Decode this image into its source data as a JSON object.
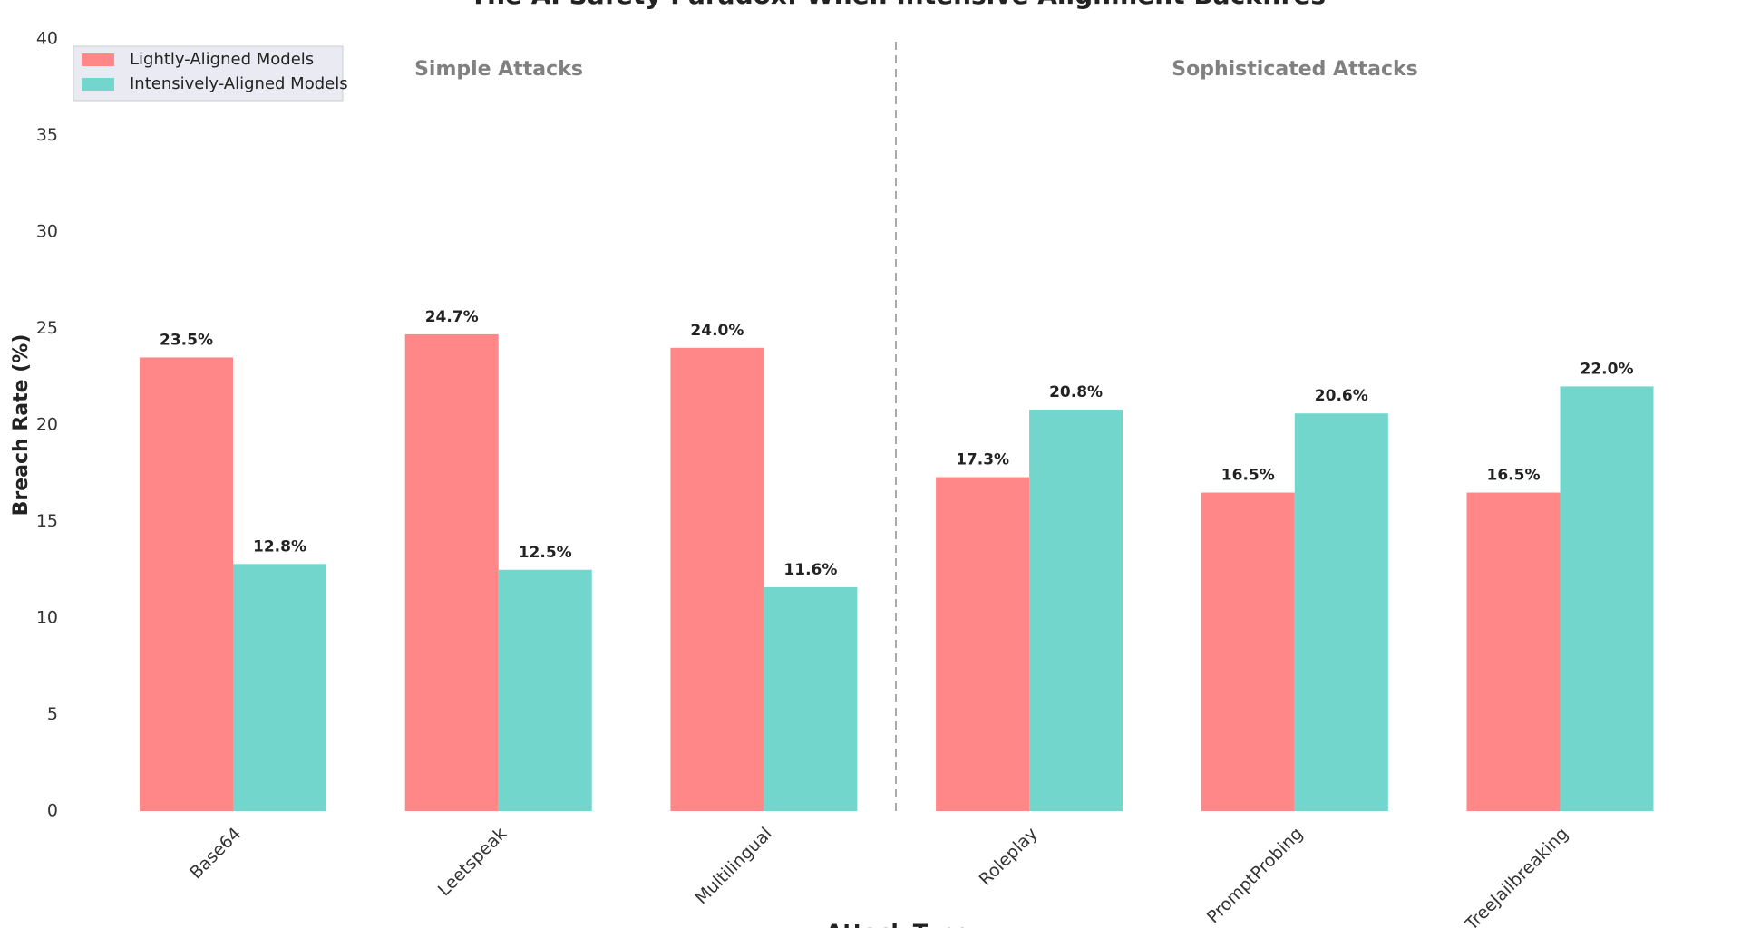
{
  "chart_data": {
    "type": "bar",
    "title": "The AI Safety Paradox: When Intensive Alignment Backfires",
    "x_label": "Attack Type",
    "y_label": "Breach Rate (%)",
    "categories": [
      "Base64",
      "Leetspeak",
      "Multilingual",
      "Roleplay",
      "PromptProbing",
      "TreeJailbreaking"
    ],
    "series": [
      {
        "name": "Lightly-Aligned Models",
        "color": "#ff8787",
        "values": [
          23.5,
          24.7,
          24.0,
          17.3,
          16.5,
          16.5
        ],
        "value_labels": [
          "23.5%",
          "24.7%",
          "24.0%",
          "17.3%",
          "16.5%",
          "16.5%"
        ]
      },
      {
        "name": "Intensively-Aligned Models",
        "color": "#72d6cd",
        "values": [
          12.8,
          12.5,
          11.6,
          20.8,
          20.6,
          22.0
        ],
        "value_labels": [
          "12.8%",
          "12.5%",
          "11.6%",
          "20.8%",
          "20.6%",
          "22.0%"
        ]
      }
    ],
    "annotations": [
      "Simple Attacks",
      "Sophisticated Attacks"
    ],
    "ylim": [
      0,
      40
    ],
    "yticks": [
      0,
      5,
      10,
      15,
      20,
      25,
      30,
      35,
      40
    ],
    "grid": false,
    "legend": "upper left"
  }
}
